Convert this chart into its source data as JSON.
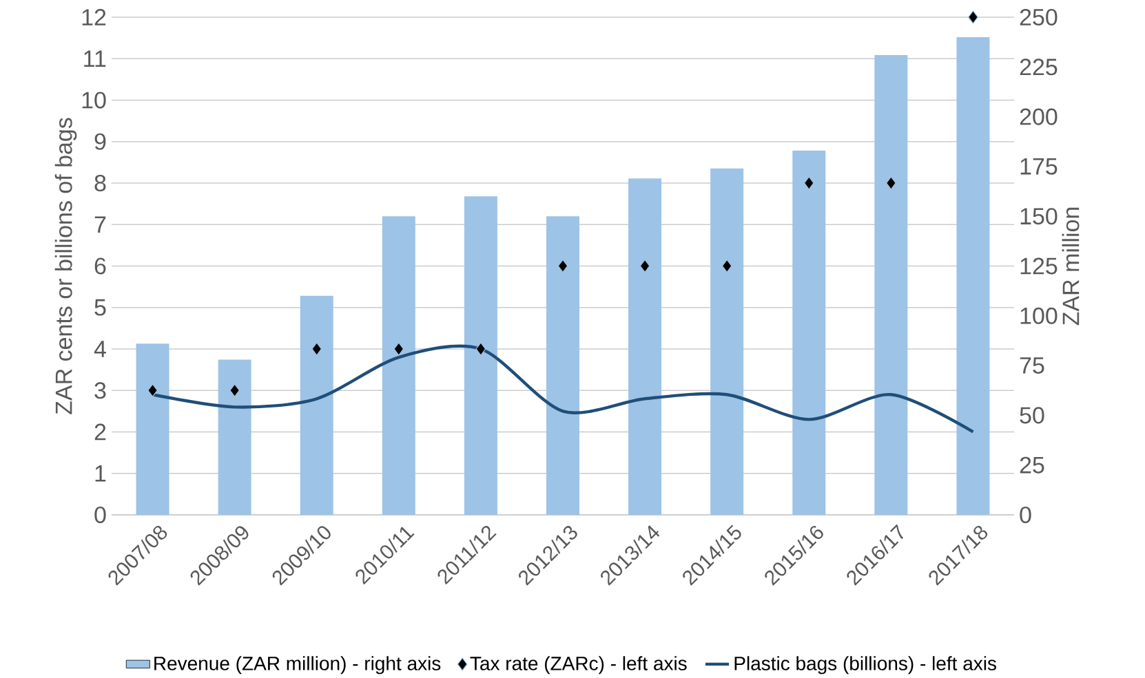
{
  "chart_data": {
    "type": "bar",
    "ylabel": "ZAR cents or billions of bags",
    "y2label": "ZAR million",
    "categories": [
      "2007/08",
      "2008/09",
      "2009/10",
      "2010/11",
      "2011/12",
      "2012/13",
      "2013/14",
      "2014/15",
      "2015/16",
      "2016/17",
      "2017/18"
    ],
    "series": [
      {
        "name": "Revenue (ZAR million) - right axis",
        "axis": "y2",
        "color": "#9dc3e6",
        "values": [
          86,
          78,
          110,
          150,
          160,
          150,
          169,
          174,
          183,
          231,
          240
        ]
      },
      {
        "name": "Tax rate (ZARc) - left axis",
        "type": "scatter",
        "marker": "diamond",
        "color": "#000000",
        "values": [
          3,
          3,
          4,
          4,
          4,
          6,
          6,
          6,
          8,
          8,
          12
        ]
      },
      {
        "name": "Plastic bags (billions) - left axis",
        "type": "line",
        "color": "#1f4e79",
        "values": [
          2.9,
          2.6,
          2.8,
          3.8,
          4.0,
          2.5,
          2.8,
          2.9,
          2.3,
          2.9,
          2.0
        ]
      }
    ],
    "ylim": [
      0,
      12
    ],
    "yticks": [
      0,
      1,
      2,
      3,
      4,
      5,
      6,
      7,
      8,
      9,
      10,
      11,
      12
    ],
    "y2lim": [
      0,
      250
    ],
    "y2ticks": [
      0,
      25,
      50,
      75,
      100,
      125,
      150,
      175,
      200,
      225,
      250
    ],
    "grid": "y",
    "legend": "bottom"
  }
}
